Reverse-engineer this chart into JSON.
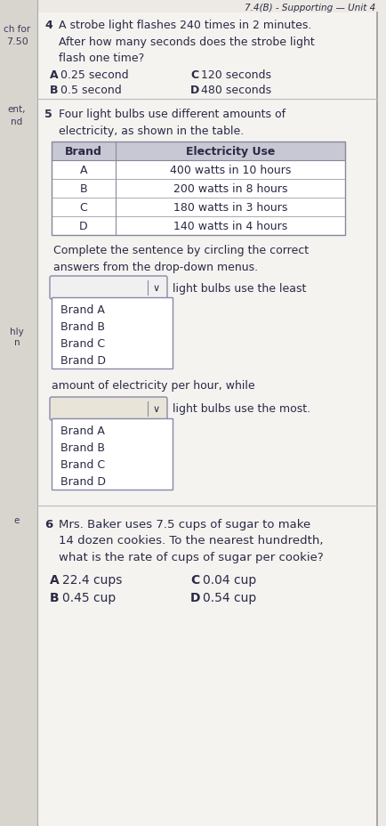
{
  "header_text": "7.4(B) - Supporting — Unit 4",
  "bg_color": "#ede9e4",
  "content_bg": "#f5f3f0",
  "white_bg": "#ffffff",
  "q4_number": "4",
  "q4_text": "A strobe light flashes 240 times in 2 minutes.\nAfter how many seconds does the strobe light\nflash one time?",
  "q4_options": [
    [
      "A",
      "0.25 second",
      "C",
      "120 seconds"
    ],
    [
      "B",
      "0.5 second",
      "D",
      "480 seconds"
    ]
  ],
  "q5_number": "5",
  "q5_text": "Four light bulbs use different amounts of\nelectricity, as shown in the table.",
  "table_headers": [
    "Brand",
    "Electricity Use"
  ],
  "table_rows": [
    [
      "A",
      "400 watts in 10 hours"
    ],
    [
      "B",
      "200 watts in 8 hours"
    ],
    [
      "C",
      "180 watts in 3 hours"
    ],
    [
      "D",
      "140 watts in 4 hours"
    ]
  ],
  "q5_instruction": "Complete the sentence by circling the correct\nanswers from the drop-down menus.",
  "dropdown1_label": "light bulbs use the least",
  "dropdown1_options": [
    "Brand A",
    "Brand B",
    "Brand C",
    "Brand D"
  ],
  "middle_text": "amount of electricity per hour, while",
  "dropdown2_label": "light bulbs use the most.",
  "dropdown2_options": [
    "Brand A",
    "Brand B",
    "Brand C",
    "Brand D"
  ],
  "q6_number": "6",
  "q6_text": "Mrs. Baker uses 7.5 cups of sugar to make\n14 dozen cookies. To the nearest hundredth,\nwhat is the rate of cups of sugar per cookie?",
  "q6_options": [
    [
      "A",
      "22.4 cups",
      "C",
      "0.04 cup"
    ],
    [
      "B",
      "0.45 cup",
      "D",
      "0.54 cup"
    ]
  ],
  "text_color": "#3a3a5a",
  "dark_text": "#2a2a45",
  "table_header_bg": "#c8c8d4",
  "table_cell_bg": "#ffffff",
  "dropdown_bg": "#f0f0f0",
  "dropdown2_bg": "#e8e4d8",
  "border_color": "#9999bb",
  "sidebar_bg": "#d8d5ce",
  "sidebar_text": "#3a3a5a",
  "header_bg": "#c0bdb8",
  "sidebar_items": [
    [
      19,
      28,
      "ch for",
      7.5
    ],
    [
      19,
      42,
      "7.50",
      8.0
    ],
    [
      19,
      118,
      "ent,",
      7.5
    ],
    [
      19,
      132,
      "nd",
      7.5
    ],
    [
      19,
      368,
      "hly",
      7.5
    ],
    [
      19,
      380,
      "n",
      7.5
    ],
    [
      19,
      580,
      "e",
      7.5
    ]
  ]
}
